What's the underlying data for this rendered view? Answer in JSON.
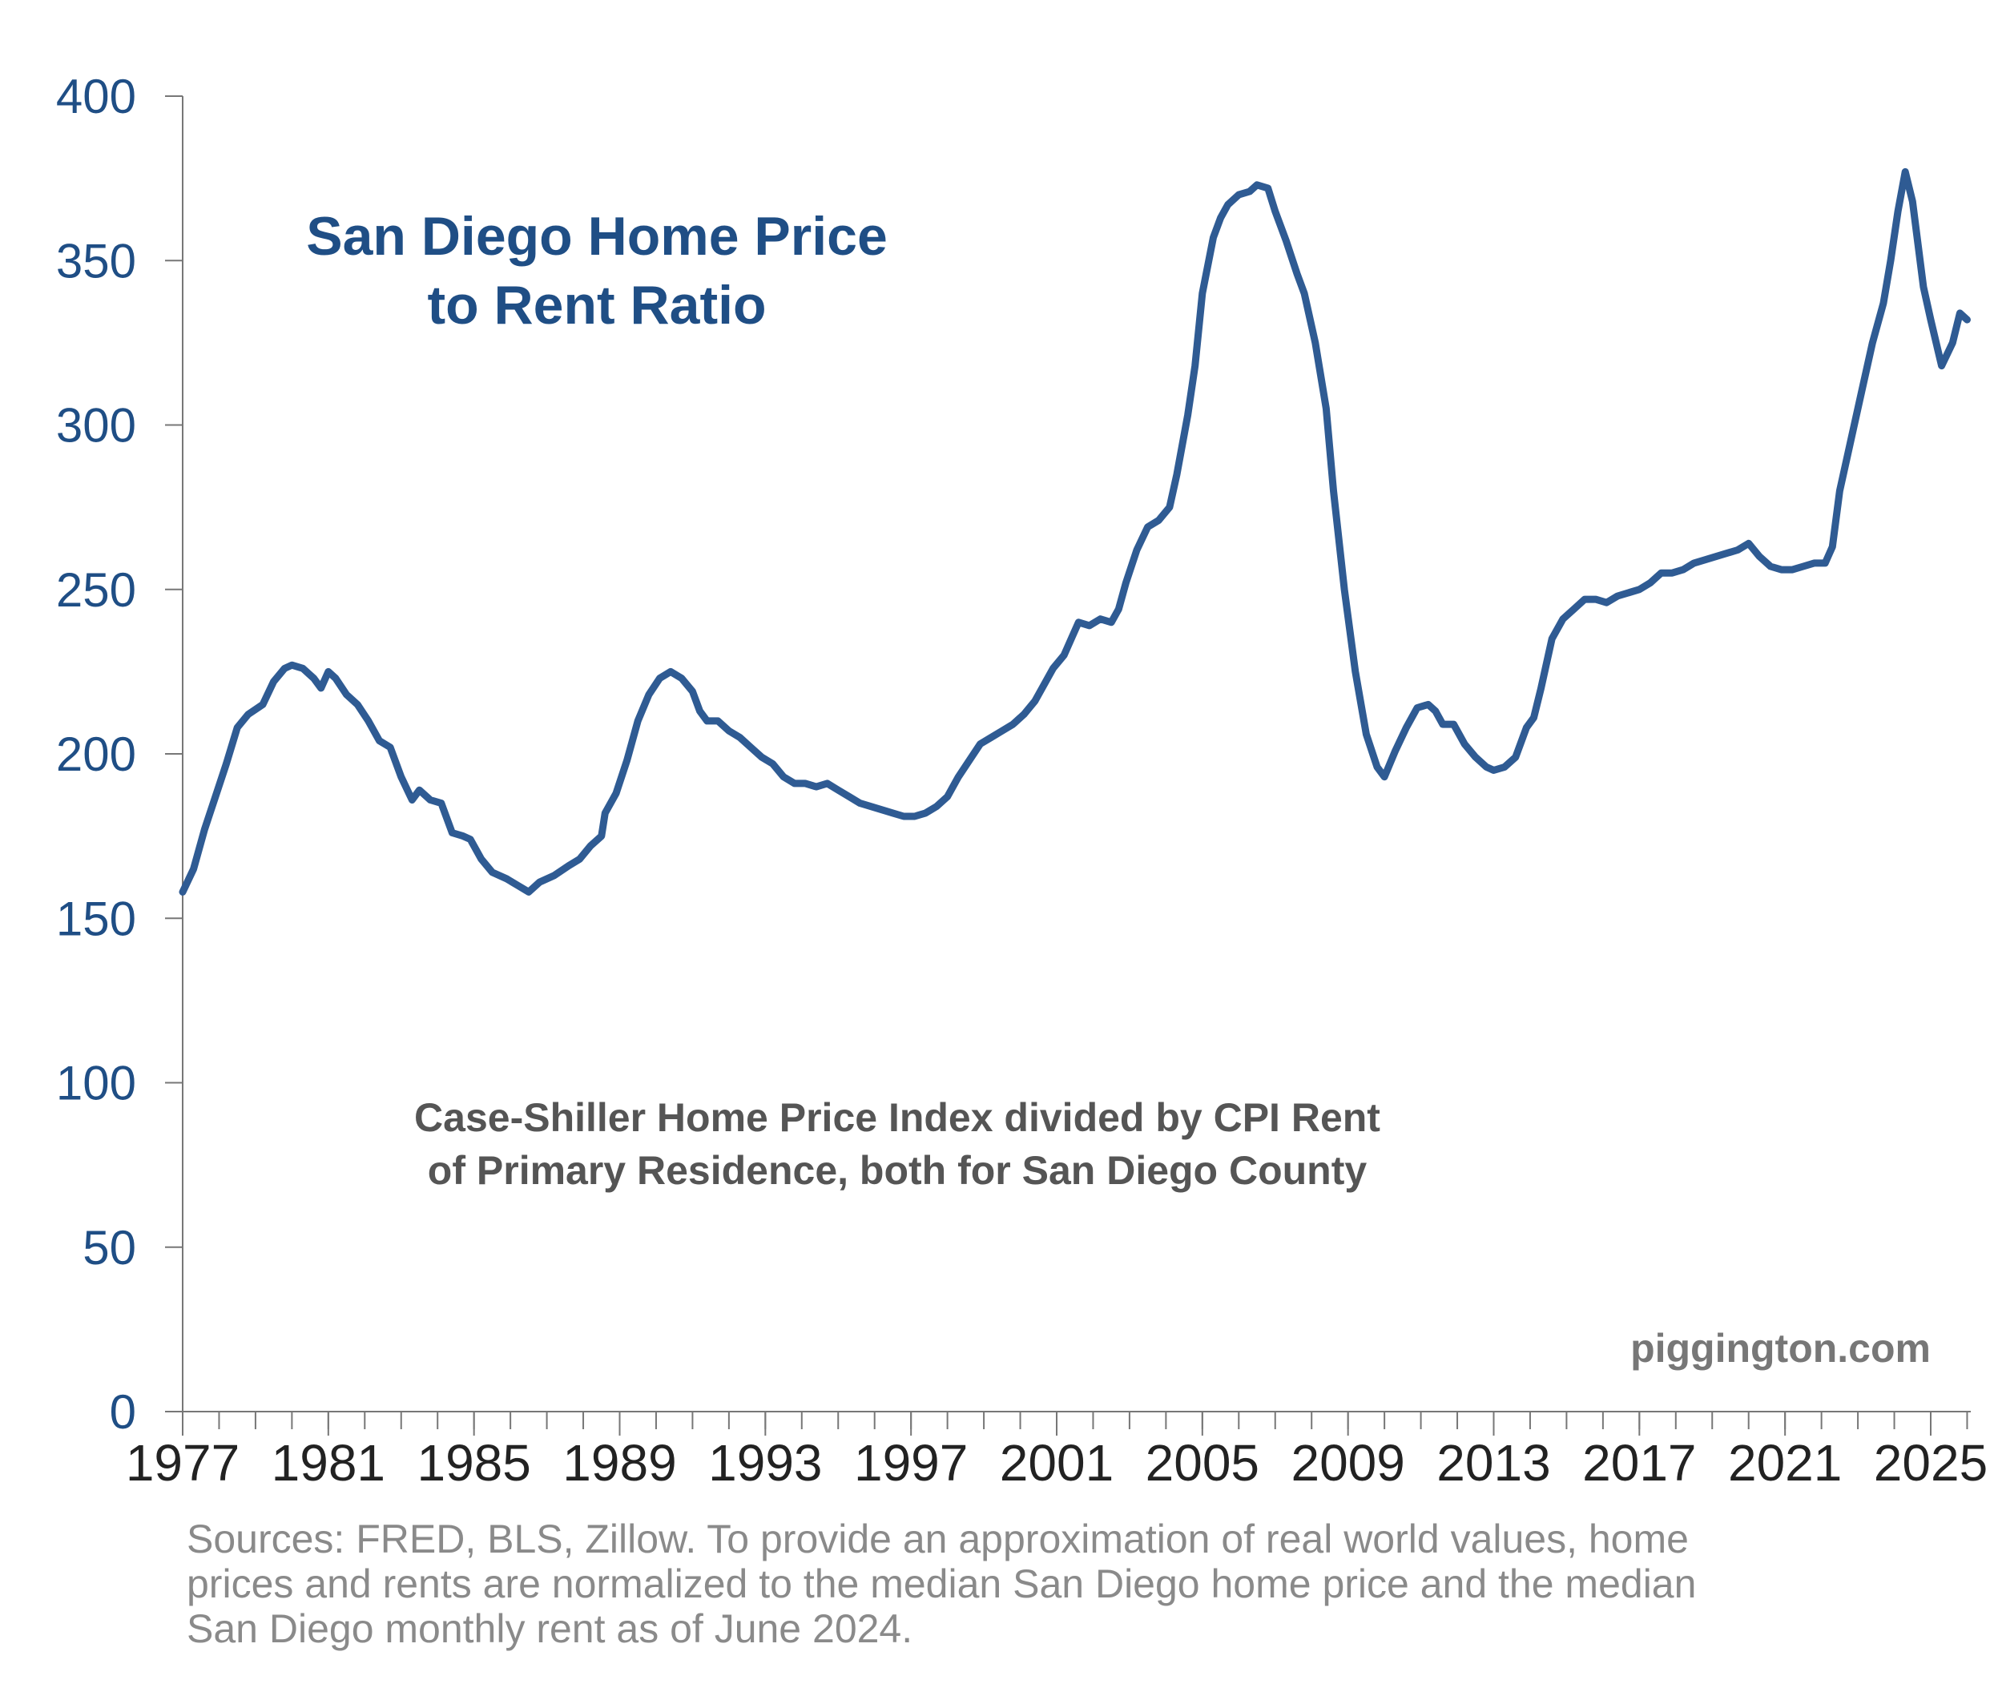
{
  "chart_data": {
    "type": "line",
    "title": [
      "San Diego Home Price",
      "to Rent Ratio"
    ],
    "subtitle": [
      "Case-Shiller Home Price Index divided by CPI Rent",
      "of Primary Residence, both for San Diego County"
    ],
    "watermark": "piggington.com",
    "xlabel": "",
    "ylabel": "",
    "xlim": [
      1977,
      2026.1
    ],
    "ylim": [
      0,
      400
    ],
    "x_ticks": [
      "1977",
      "1981",
      "1985",
      "1989",
      "1993",
      "1997",
      "2001",
      "2005",
      "2009",
      "2013",
      "2017",
      "2021",
      "2025"
    ],
    "y_ticks": [
      "0",
      "50",
      "100",
      "150",
      "200",
      "250",
      "300",
      "350",
      "400"
    ],
    "grid": false,
    "legend": "none",
    "colors": {
      "line": "#2f5b93",
      "title": "#1f4e85",
      "yticks": "#1f4e85",
      "subtitle": "#555555",
      "sources": "#8a8a8a"
    },
    "series": [
      {
        "values": [
          [
            1977.0,
            158
          ],
          [
            1977.3,
            165
          ],
          [
            1977.6,
            177
          ],
          [
            1977.9,
            187
          ],
          [
            1978.2,
            197
          ],
          [
            1978.5,
            208
          ],
          [
            1978.8,
            212
          ],
          [
            1979.2,
            215
          ],
          [
            1979.5,
            222
          ],
          [
            1979.8,
            226
          ],
          [
            1980.0,
            227
          ],
          [
            1980.3,
            226
          ],
          [
            1980.6,
            223
          ],
          [
            1980.8,
            220
          ],
          [
            1981.0,
            225
          ],
          [
            1981.2,
            223
          ],
          [
            1981.5,
            218
          ],
          [
            1981.8,
            215
          ],
          [
            1982.1,
            210
          ],
          [
            1982.4,
            204
          ],
          [
            1982.7,
            202
          ],
          [
            1983.0,
            193
          ],
          [
            1983.3,
            186
          ],
          [
            1983.5,
            189
          ],
          [
            1983.8,
            186
          ],
          [
            1984.1,
            185
          ],
          [
            1984.4,
            176
          ],
          [
            1984.7,
            175
          ],
          [
            1984.9,
            174
          ],
          [
            1985.2,
            168
          ],
          [
            1985.5,
            164
          ],
          [
            1985.9,
            162
          ],
          [
            1986.2,
            160
          ],
          [
            1986.5,
            158
          ],
          [
            1986.8,
            161
          ],
          [
            1987.2,
            163
          ],
          [
            1987.6,
            166
          ],
          [
            1987.9,
            168
          ],
          [
            1988.2,
            172
          ],
          [
            1988.5,
            175
          ],
          [
            1988.6,
            182
          ],
          [
            1988.9,
            188
          ],
          [
            1989.2,
            198
          ],
          [
            1989.5,
            210
          ],
          [
            1989.8,
            218
          ],
          [
            1990.1,
            223
          ],
          [
            1990.4,
            225
          ],
          [
            1990.7,
            223
          ],
          [
            1991.0,
            219
          ],
          [
            1991.2,
            213
          ],
          [
            1991.4,
            210
          ],
          [
            1991.7,
            210
          ],
          [
            1992.0,
            207
          ],
          [
            1992.3,
            205
          ],
          [
            1992.6,
            202
          ],
          [
            1992.9,
            199
          ],
          [
            1993.2,
            197
          ],
          [
            1993.5,
            193
          ],
          [
            1993.8,
            191
          ],
          [
            1994.1,
            191
          ],
          [
            1994.4,
            190
          ],
          [
            1994.7,
            191
          ],
          [
            1995.0,
            189
          ],
          [
            1995.3,
            187
          ],
          [
            1995.6,
            185
          ],
          [
            1995.9,
            184
          ],
          [
            1996.2,
            183
          ],
          [
            1996.5,
            182
          ],
          [
            1996.8,
            181
          ],
          [
            1997.1,
            181
          ],
          [
            1997.4,
            182
          ],
          [
            1997.7,
            184
          ],
          [
            1998.0,
            187
          ],
          [
            1998.3,
            193
          ],
          [
            1998.6,
            198
          ],
          [
            1998.9,
            203
          ],
          [
            1999.2,
            205
          ],
          [
            1999.5,
            207
          ],
          [
            1999.8,
            209
          ],
          [
            2000.1,
            212
          ],
          [
            2000.4,
            216
          ],
          [
            2000.7,
            222
          ],
          [
            2000.9,
            226
          ],
          [
            2001.2,
            230
          ],
          [
            2001.4,
            235
          ],
          [
            2001.6,
            240
          ],
          [
            2001.9,
            239
          ],
          [
            2002.2,
            241
          ],
          [
            2002.5,
            240
          ],
          [
            2002.7,
            244
          ],
          [
            2002.9,
            252
          ],
          [
            2003.2,
            262
          ],
          [
            2003.5,
            269
          ],
          [
            2003.8,
            271
          ],
          [
            2004.1,
            275
          ],
          [
            2004.3,
            285
          ],
          [
            2004.6,
            303
          ],
          [
            2004.8,
            318
          ],
          [
            2005.0,
            340
          ],
          [
            2005.3,
            357
          ],
          [
            2005.5,
            363
          ],
          [
            2005.7,
            367
          ],
          [
            2006.0,
            370
          ],
          [
            2006.3,
            371
          ],
          [
            2006.5,
            373
          ],
          [
            2006.8,
            372
          ],
          [
            2007.0,
            365
          ],
          [
            2007.3,
            356
          ],
          [
            2007.6,
            346
          ],
          [
            2007.8,
            340
          ],
          [
            2008.1,
            325
          ],
          [
            2008.4,
            305
          ],
          [
            2008.6,
            280
          ],
          [
            2008.9,
            250
          ],
          [
            2009.2,
            225
          ],
          [
            2009.5,
            206
          ],
          [
            2009.8,
            196
          ],
          [
            2010.0,
            193
          ],
          [
            2010.3,
            201
          ],
          [
            2010.6,
            208
          ],
          [
            2010.9,
            214
          ],
          [
            2011.2,
            215
          ],
          [
            2011.4,
            213
          ],
          [
            2011.6,
            209
          ],
          [
            2011.9,
            209
          ],
          [
            2012.2,
            203
          ],
          [
            2012.5,
            199
          ],
          [
            2012.8,
            196
          ],
          [
            2013.0,
            195
          ],
          [
            2013.3,
            196
          ],
          [
            2013.6,
            199
          ],
          [
            2013.9,
            208
          ],
          [
            2014.1,
            211
          ],
          [
            2014.3,
            220
          ],
          [
            2014.6,
            235
          ],
          [
            2014.9,
            241
          ],
          [
            2015.2,
            244
          ],
          [
            2015.5,
            247
          ],
          [
            2015.8,
            247
          ],
          [
            2016.1,
            246
          ],
          [
            2016.4,
            248
          ],
          [
            2016.7,
            249
          ],
          [
            2017.0,
            250
          ],
          [
            2017.3,
            252
          ],
          [
            2017.6,
            255
          ],
          [
            2017.9,
            255
          ],
          [
            2018.2,
            256
          ],
          [
            2018.5,
            258
          ],
          [
            2018.8,
            259
          ],
          [
            2019.1,
            260
          ],
          [
            2019.4,
            261
          ],
          [
            2019.7,
            262
          ],
          [
            2020.0,
            264
          ],
          [
            2020.3,
            260
          ],
          [
            2020.6,
            257
          ],
          [
            2020.9,
            256
          ],
          [
            2021.2,
            256
          ],
          [
            2021.5,
            257
          ],
          [
            2021.8,
            258
          ],
          [
            2022.1,
            258
          ],
          [
            2022.3,
            263
          ],
          [
            2022.5,
            280
          ],
          [
            2022.8,
            295
          ],
          [
            2023.1,
            310
          ],
          [
            2023.4,
            325
          ],
          [
            2023.7,
            337
          ],
          [
            2023.9,
            350
          ],
          [
            2024.1,
            365
          ],
          [
            2024.3,
            377
          ],
          [
            2024.5,
            368
          ],
          [
            2024.8,
            342
          ],
          [
            2025.0,
            332
          ],
          [
            2025.3,
            318
          ],
          [
            2025.6,
            325
          ],
          [
            2025.8,
            334
          ],
          [
            2026.0,
            332
          ]
        ]
      }
    ]
  },
  "sources": [
    "Sources: FRED, BLS, Zillow. To provide an approximation of real world values, home",
    "prices and rents are normalized to the median San Diego home price and the median",
    "San Diego monthly rent as of June 2024."
  ]
}
